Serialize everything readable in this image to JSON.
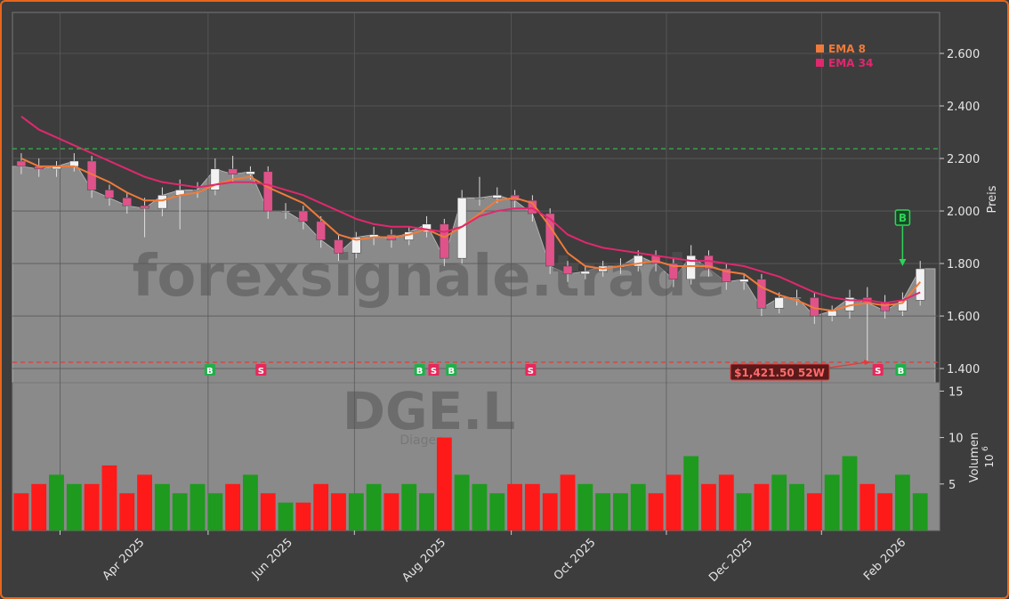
{
  "chart_data": {
    "type": "candlestick",
    "watermark": "forexsignale.trade",
    "symbol": "DGE.L",
    "company": "Diageo",
    "ylabel": "Preis",
    "y2label": "Volumen",
    "y2unit": "10",
    "y2unit_exp": "6",
    "xlim": [
      0,
      52.6
    ],
    "xticks": [
      {
        "value": 7.1,
        "label": "Apr 2025"
      },
      {
        "value": 15.5,
        "label": "Jun 2025"
      },
      {
        "value": 24.2,
        "label": "Aug 2025"
      },
      {
        "value": 32.7,
        "label": "Oct 2025"
      },
      {
        "value": 41.6,
        "label": "Dec 2025"
      },
      {
        "value": 50.3,
        "label": "Feb 2026"
      }
    ],
    "xgrid": [
      2.7,
      11.1,
      19.4,
      28.3,
      37.1,
      45.9
    ],
    "ylim": [
      1.346,
      2.756
    ],
    "yticks": [
      {
        "value": 1.4,
        "label": "1.400"
      },
      {
        "value": 1.6,
        "label": "1.600"
      },
      {
        "value": 1.8,
        "label": "1.800"
      },
      {
        "value": 2.0,
        "label": "2.000"
      },
      {
        "value": 2.2,
        "label": "2.200"
      },
      {
        "value": 2.4,
        "label": "2.400"
      },
      {
        "value": 2.6,
        "label": "2.600"
      }
    ],
    "y2lim": [
      0,
      15.9
    ],
    "y2ticks": [
      5,
      10,
      15
    ],
    "grid": true,
    "up_color": "#f2f2f2",
    "down_color": "#e0528a",
    "area_color": "#8a8a8a",
    "volume_up_color": "#1e9a1e",
    "volume_down_color": "#ff1a1a",
    "open": [
      2.19,
      2.17,
      2.16,
      2.17,
      2.19,
      2.08,
      2.05,
      2.02,
      2.01,
      2.06,
      2.08,
      2.08,
      2.16,
      2.14,
      2.15,
      2.0,
      2.0,
      1.96,
      1.89,
      1.84,
      1.9,
      1.91,
      1.89,
      1.92,
      1.95,
      1.82,
      2.05,
      2.05,
      2.06,
      2.04,
      1.99,
      1.79,
      1.76,
      1.77,
      1.79,
      1.79,
      1.83,
      1.8,
      1.74,
      1.83,
      1.78,
      1.73,
      1.74,
      1.63,
      1.67,
      1.67,
      1.6,
      1.62,
      1.67,
      1.65,
      1.62,
      1.66
    ],
    "high": [
      2.22,
      2.2,
      2.19,
      2.22,
      2.21,
      2.1,
      2.07,
      2.05,
      2.09,
      2.12,
      2.11,
      2.2,
      2.21,
      2.17,
      2.17,
      2.03,
      2.02,
      1.98,
      1.91,
      1.92,
      1.94,
      1.93,
      1.94,
      1.98,
      1.97,
      2.08,
      2.13,
      2.09,
      2.08,
      2.06,
      2.01,
      1.81,
      1.79,
      1.81,
      1.82,
      1.85,
      1.85,
      1.82,
      1.87,
      1.85,
      1.8,
      1.76,
      1.76,
      1.69,
      1.7,
      1.69,
      1.64,
      1.7,
      1.71,
      1.68,
      1.69,
      1.81
    ],
    "low": [
      2.14,
      2.13,
      2.13,
      2.15,
      2.05,
      2.02,
      1.99,
      1.9,
      1.98,
      1.93,
      2.05,
      2.06,
      2.11,
      2.12,
      1.97,
      1.97,
      1.93,
      1.86,
      1.81,
      1.82,
      1.87,
      1.86,
      1.87,
      1.9,
      1.79,
      1.8,
      2.02,
      2.03,
      2.01,
      1.96,
      1.76,
      1.73,
      1.74,
      1.75,
      1.76,
      1.77,
      1.77,
      1.71,
      1.72,
      1.75,
      1.7,
      1.7,
      1.6,
      1.61,
      1.64,
      1.57,
      1.58,
      1.59,
      1.42,
      1.59,
      1.6,
      1.64
    ],
    "close": [
      2.17,
      2.16,
      2.17,
      2.19,
      2.08,
      2.05,
      2.02,
      2.01,
      2.06,
      2.08,
      2.08,
      2.16,
      2.14,
      2.15,
      2.0,
      2.0,
      1.96,
      1.89,
      1.84,
      1.9,
      1.91,
      1.89,
      1.92,
      1.95,
      1.82,
      2.05,
      2.05,
      2.06,
      2.04,
      1.99,
      1.79,
      1.76,
      1.77,
      1.79,
      1.79,
      1.83,
      1.8,
      1.74,
      1.83,
      1.78,
      1.73,
      1.74,
      1.63,
      1.67,
      1.67,
      1.6,
      1.62,
      1.67,
      1.65,
      1.62,
      1.66,
      1.78
    ],
    "volume": [
      4,
      5,
      6,
      5,
      5,
      7,
      4,
      6,
      5,
      4,
      5,
      4,
      5,
      6,
      4,
      3,
      3,
      5,
      4,
      4,
      5,
      4,
      5,
      4,
      10,
      6,
      5,
      4,
      5,
      5,
      4,
      6,
      5,
      4,
      4,
      5,
      4,
      6,
      8,
      5,
      6,
      4,
      5,
      6,
      5,
      4,
      6,
      8,
      5,
      4,
      6,
      4
    ],
    "series": [
      {
        "name": "EMA 8",
        "color": "#f07a3a",
        "values": [
          2.2,
          2.17,
          2.17,
          2.17,
          2.14,
          2.11,
          2.07,
          2.04,
          2.04,
          2.06,
          2.07,
          2.1,
          2.12,
          2.13,
          2.09,
          2.06,
          2.03,
          1.97,
          1.91,
          1.89,
          1.9,
          1.9,
          1.91,
          1.93,
          1.9,
          1.94,
          1.99,
          2.04,
          2.05,
          2.03,
          1.94,
          1.84,
          1.79,
          1.78,
          1.79,
          1.8,
          1.81,
          1.79,
          1.79,
          1.79,
          1.77,
          1.76,
          1.71,
          1.68,
          1.66,
          1.63,
          1.62,
          1.64,
          1.65,
          1.64,
          1.65,
          1.73
        ]
      },
      {
        "name": "EMA 34",
        "color": "#e0286e",
        "values": [
          2.36,
          2.31,
          2.28,
          2.25,
          2.22,
          2.19,
          2.16,
          2.13,
          2.11,
          2.1,
          2.09,
          2.1,
          2.11,
          2.11,
          2.1,
          2.08,
          2.06,
          2.03,
          2.0,
          1.97,
          1.95,
          1.94,
          1.94,
          1.93,
          1.92,
          1.94,
          1.98,
          2.0,
          2.01,
          2.01,
          1.97,
          1.91,
          1.88,
          1.86,
          1.85,
          1.84,
          1.83,
          1.82,
          1.81,
          1.81,
          1.8,
          1.79,
          1.77,
          1.75,
          1.72,
          1.69,
          1.67,
          1.66,
          1.66,
          1.65,
          1.66,
          1.69
        ]
      }
    ],
    "high_line": {
      "value": 2.237,
      "color": "#2fb84a"
    },
    "low_line": {
      "value": 1.424,
      "color": "#e53a3a"
    },
    "low_annotation": {
      "text": "$1,421.50 52W",
      "x": 48.7
    },
    "signals": [
      {
        "x": 11.2,
        "label": "B"
      },
      {
        "x": 14.1,
        "label": "S"
      },
      {
        "x": 23.1,
        "label": "B"
      },
      {
        "x": 23.9,
        "label": "S"
      },
      {
        "x": 24.9,
        "label": "B"
      },
      {
        "x": 29.4,
        "label": "S"
      },
      {
        "x": 49.1,
        "label": "S"
      },
      {
        "x": 50.4,
        "label": "B"
      }
    ],
    "flag": {
      "x": 50.5,
      "label": "B",
      "price": 1.79
    }
  }
}
